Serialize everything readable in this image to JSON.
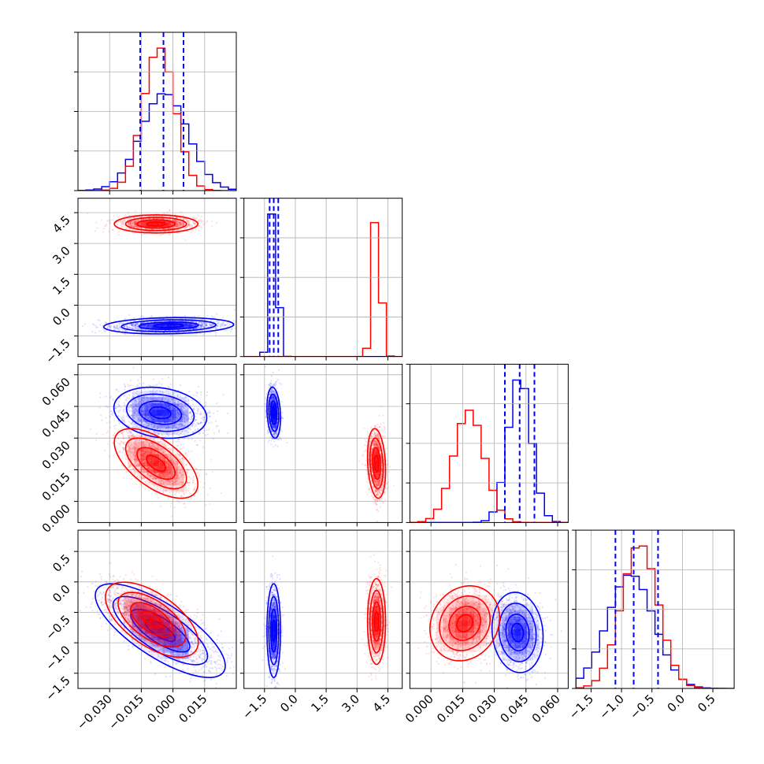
{
  "chart_data": {
    "type": "corner",
    "title": "",
    "grid": true,
    "legend": "none",
    "series": [
      {
        "key": "blue",
        "color": "#0000ff"
      },
      {
        "key": "red",
        "color": "#ff0000"
      }
    ],
    "params": [
      {
        "range": [
          -0.045,
          0.03
        ],
        "ticks": [
          -0.03,
          -0.015,
          0.0,
          0.015
        ],
        "tick_labels": [
          "−0.030",
          "−0.015",
          "0.000",
          "0.015"
        ]
      },
      {
        "range": [
          -2.5,
          5.2
        ],
        "ticks": [
          -1.5,
          0.0,
          1.5,
          3.0,
          4.5
        ],
        "tick_labels": [
          "−1.5",
          "0.0",
          "1.5",
          "3.0",
          "4.5"
        ]
      },
      {
        "range": [
          -0.01,
          0.065
        ],
        "ticks": [
          0.0,
          0.015,
          0.03,
          0.045,
          0.06
        ],
        "tick_labels": [
          "0.000",
          "0.015",
          "0.030",
          "0.045",
          "0.060"
        ]
      },
      {
        "range": [
          -1.75,
          0.85
        ],
        "ticks": [
          -1.5,
          -1.0,
          -0.5,
          0.0,
          0.5
        ],
        "tick_labels": [
          "−1.5",
          "−1.0",
          "−0.5",
          "0.0",
          "0.5"
        ]
      }
    ],
    "marginals": [
      {
        "quantiles": [
          -0.0155,
          -0.0045,
          0.005
        ],
        "blue": {
          "mean": -0.004,
          "sd": 0.011
        },
        "red": {
          "mean": -0.0065,
          "sd": 0.0075
        }
      },
      {
        "quantiles": [
          -1.25,
          -1.05,
          -0.83
        ],
        "blue": {
          "mean": -1.05,
          "sd": 0.18
        },
        "red": {
          "mean": 3.95,
          "sd": 0.2
        }
      },
      {
        "quantiles": [
          0.035,
          0.042,
          0.049
        ],
        "blue": {
          "mean": 0.042,
          "sd": 0.0055
        },
        "red": {
          "mean": 0.018,
          "sd": 0.0072
        }
      },
      {
        "quantiles": [
          -1.1,
          -0.8,
          -0.4
        ],
        "blue": {
          "mean": -0.85,
          "sd": 0.38
        },
        "red": {
          "mean": -0.7,
          "sd": 0.3
        }
      }
    ],
    "pairs": [
      {
        "x": 0,
        "y": 1,
        "blue": {
          "mean": [
            -0.002,
            -1.0
          ],
          "sd": [
            0.014,
            0.18
          ],
          "rho": 0.15
        },
        "red": {
          "mean": [
            -0.008,
            3.95
          ],
          "sd": [
            0.009,
            0.2
          ],
          "rho": 0.0
        }
      },
      {
        "x": 0,
        "y": 2,
        "blue": {
          "mean": [
            -0.006,
            0.042
          ],
          "sd": [
            0.01,
            0.0055
          ],
          "rho": -0.2
        },
        "red": {
          "mean": [
            -0.008,
            0.018
          ],
          "sd": [
            0.009,
            0.0075
          ],
          "rho": -0.6
        }
      },
      {
        "x": 1,
        "y": 2,
        "blue": {
          "mean": [
            -1.05,
            0.042
          ],
          "sd": [
            0.15,
            0.0055
          ],
          "rho": -0.2
        },
        "red": {
          "mean": [
            3.95,
            0.018
          ],
          "sd": [
            0.2,
            0.0075
          ],
          "rho": -0.2
        }
      },
      {
        "x": 0,
        "y": 3,
        "blue": {
          "mean": [
            -0.006,
            -0.8
          ],
          "sd": [
            0.014,
            0.35
          ],
          "rho": -0.75
        },
        "red": {
          "mean": [
            -0.01,
            -0.62
          ],
          "sd": [
            0.01,
            0.28
          ],
          "rho": -0.6
        }
      },
      {
        "x": 1,
        "y": 3,
        "blue": {
          "mean": [
            -1.05,
            -0.8
          ],
          "sd": [
            0.15,
            0.35
          ],
          "rho": 0.0
        },
        "red": {
          "mean": [
            3.95,
            -0.65
          ],
          "sd": [
            0.2,
            0.32
          ],
          "rho": 0.0
        }
      },
      {
        "x": 2,
        "y": 3,
        "blue": {
          "mean": [
            0.041,
            -0.83
          ],
          "sd": [
            0.0055,
            0.3
          ],
          "rho": -0.1
        },
        "red": {
          "mean": [
            0.016,
            -0.68
          ],
          "sd": [
            0.0075,
            0.28
          ],
          "rho": 0.15
        }
      }
    ]
  }
}
